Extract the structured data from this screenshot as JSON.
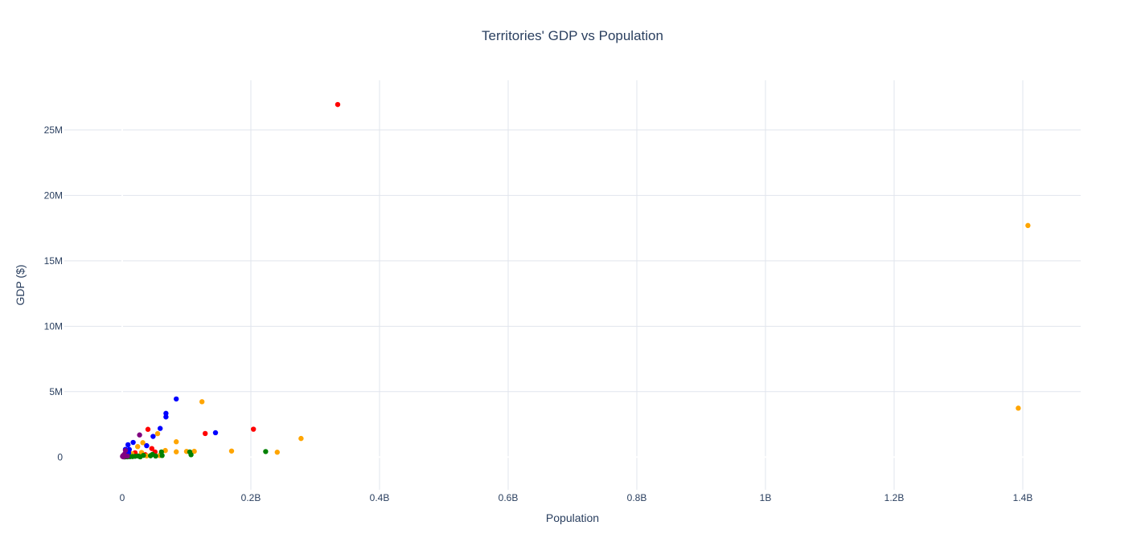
{
  "chart_data": {
    "type": "scatter",
    "title": "Territories' GDP vs Population",
    "xlabel": "Population",
    "ylabel": "GDP ($)",
    "xlim": [
      -90000000,
      1490000000
    ],
    "ylim": [
      -2500000,
      28800000
    ],
    "x_ticks": [
      {
        "value": 0,
        "label": "0"
      },
      {
        "value": 200000000,
        "label": "0.2B"
      },
      {
        "value": 400000000,
        "label": "0.4B"
      },
      {
        "value": 600000000,
        "label": "0.6B"
      },
      {
        "value": 800000000,
        "label": "0.8B"
      },
      {
        "value": 1000000000,
        "label": "1B"
      },
      {
        "value": 1200000000,
        "label": "1.2B"
      },
      {
        "value": 1400000000,
        "label": "1.4B"
      }
    ],
    "y_ticks": [
      {
        "value": 0,
        "label": "0"
      },
      {
        "value": 5000000,
        "label": "5M"
      },
      {
        "value": 10000000,
        "label": "10M"
      },
      {
        "value": 15000000,
        "label": "15M"
      },
      {
        "value": 20000000,
        "label": "20M"
      },
      {
        "value": 25000000,
        "label": "25M"
      }
    ],
    "grid": true,
    "legend": "none",
    "colors": {
      "red": "#ff0000",
      "orange": "#ffa500",
      "blue": "#0000ff",
      "green": "#008000",
      "purple": "#800080"
    },
    "series": [
      {
        "color": "#ff0000",
        "points": [
          [
            335000000,
            26950000
          ],
          [
            204000000,
            2130000
          ],
          [
            129000000,
            1800000
          ],
          [
            40000000,
            2120000
          ],
          [
            46000000,
            650000
          ],
          [
            51000000,
            390000
          ],
          [
            20000000,
            330000
          ],
          [
            10000000,
            480000
          ],
          [
            36000000,
            180000
          ],
          [
            5000000,
            120000
          ],
          [
            2000000,
            60000
          ]
        ]
      },
      {
        "color": "#ffa500",
        "points": [
          [
            1408000000,
            17700000
          ],
          [
            1393000000,
            3740000
          ],
          [
            124000000,
            4230000
          ],
          [
            278000000,
            1420000
          ],
          [
            170000000,
            460000
          ],
          [
            241000000,
            370000
          ],
          [
            112000000,
            440000
          ],
          [
            100000000,
            430000
          ],
          [
            84000000,
            1170000
          ],
          [
            84000000,
            400000
          ],
          [
            67000000,
            500000
          ],
          [
            55000000,
            1790000
          ],
          [
            32000000,
            1100000
          ],
          [
            24000000,
            800000
          ],
          [
            30000000,
            350000
          ],
          [
            45000000,
            150000
          ],
          [
            58000000,
            120000
          ],
          [
            38000000,
            90000
          ],
          [
            15000000,
            250000
          ],
          [
            10000000,
            120000
          ],
          [
            5000000,
            60000
          ]
        ]
      },
      {
        "color": "#0000ff",
        "points": [
          [
            84000000,
            4440000
          ],
          [
            68000000,
            3340000
          ],
          [
            68000000,
            3070000
          ],
          [
            59000000,
            2190000
          ],
          [
            48000000,
            1580000
          ],
          [
            145000000,
            1860000
          ],
          [
            17000000,
            1120000
          ],
          [
            9000000,
            940000
          ],
          [
            38000000,
            870000
          ],
          [
            11000000,
            580000
          ],
          [
            5000000,
            590000
          ],
          [
            10000000,
            300000
          ],
          [
            7000000,
            200000
          ],
          [
            3000000,
            100000
          ],
          [
            2000000,
            50000
          ]
        ]
      },
      {
        "color": "#008000",
        "points": [
          [
            223000000,
            420000
          ],
          [
            105000000,
            390000
          ],
          [
            107000000,
            180000
          ],
          [
            61000000,
            390000
          ],
          [
            62000000,
            120000
          ],
          [
            47000000,
            200000
          ],
          [
            44000000,
            100000
          ],
          [
            33000000,
            130000
          ],
          [
            25000000,
            80000
          ],
          [
            20000000,
            60000
          ],
          [
            16000000,
            40000
          ],
          [
            12000000,
            30000
          ],
          [
            8000000,
            20000
          ],
          [
            4000000,
            10000
          ],
          [
            28000000,
            20000
          ],
          [
            52000000,
            80000
          ]
        ]
      },
      {
        "color": "#800080",
        "points": [
          [
            27000000,
            1690000
          ],
          [
            5000000,
            500000
          ],
          [
            3000000,
            200000
          ],
          [
            1000000,
            100000
          ],
          [
            500000,
            50000
          ],
          [
            2000000,
            20000
          ],
          [
            8000000,
            70000
          ]
        ]
      }
    ]
  }
}
